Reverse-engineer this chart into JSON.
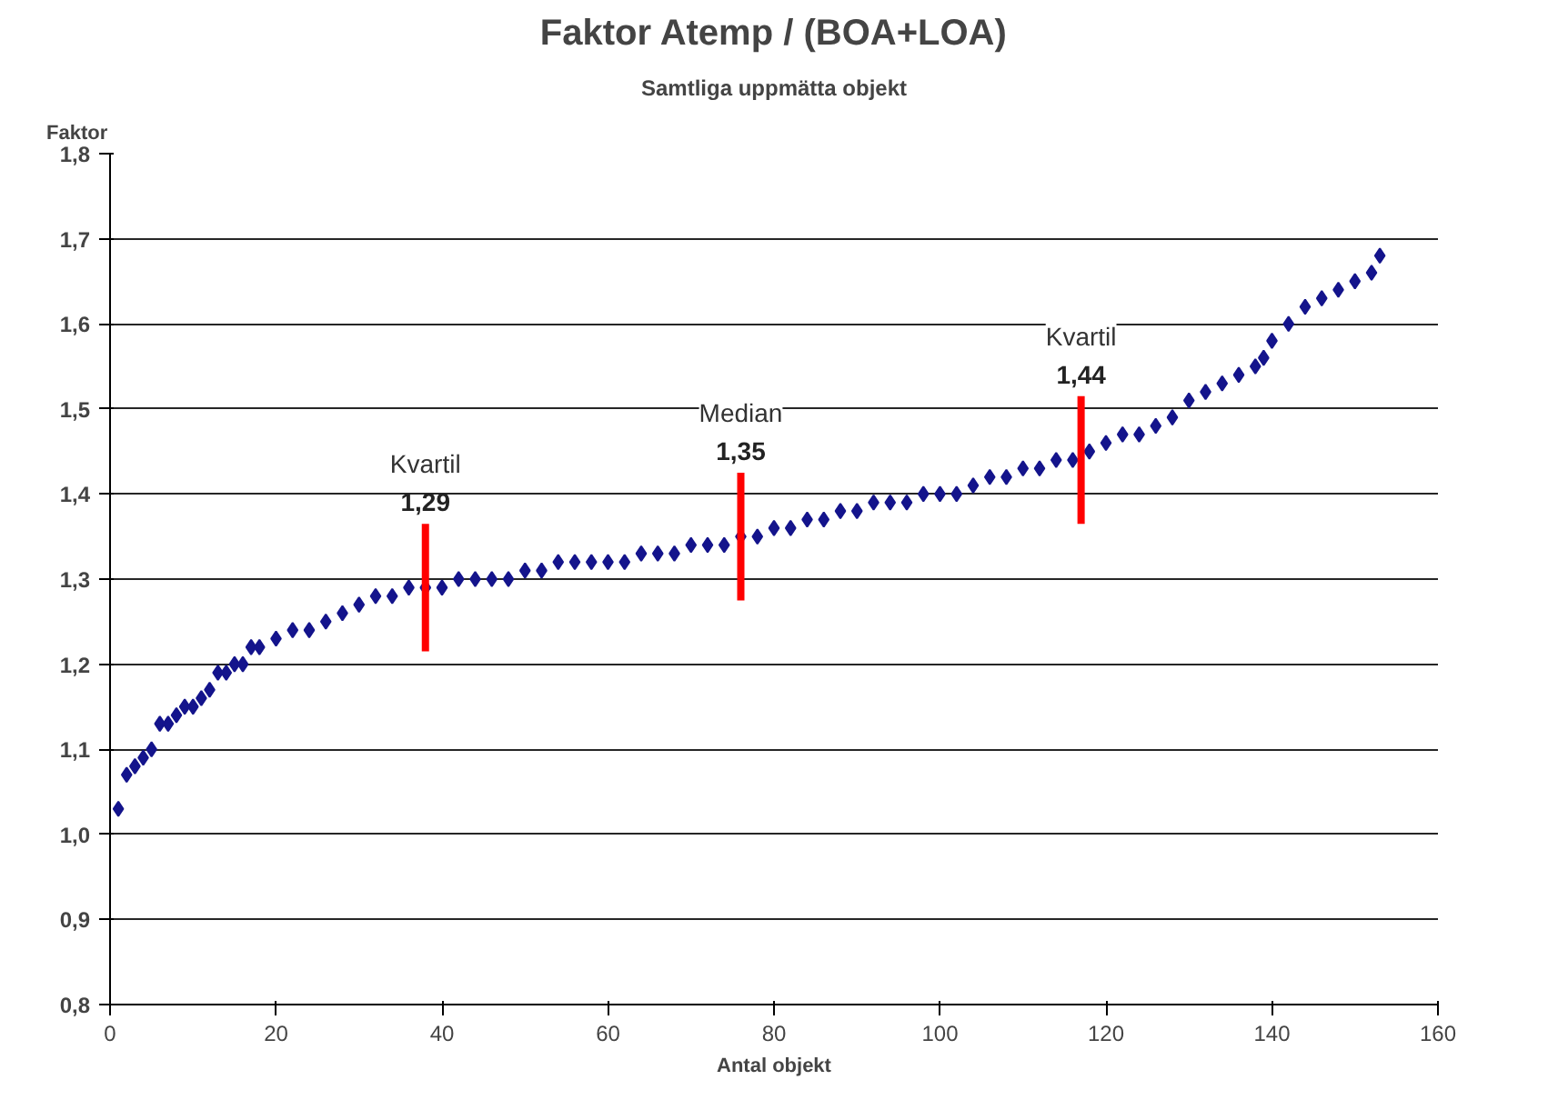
{
  "chart_data": {
    "type": "scatter",
    "title": "Faktor Atemp / (BOA+LOA)",
    "subtitle": "Samtliga uppmätta objekt",
    "xlabel": "Antal objekt",
    "ylabel": "Faktor",
    "marker": "diamond",
    "grid": "y",
    "xlim": [
      0,
      160
    ],
    "xticks": [
      0,
      20,
      40,
      60,
      80,
      100,
      120,
      140,
      160
    ],
    "ylim": [
      0.8,
      1.8
    ],
    "yticks": [
      {
        "value": 0.8,
        "label": "0,8"
      },
      {
        "value": 0.9,
        "label": "0,9"
      },
      {
        "value": 1.0,
        "label": "1,0"
      },
      {
        "value": 1.1,
        "label": "1,1"
      },
      {
        "value": 1.2,
        "label": "1,2"
      },
      {
        "value": 1.3,
        "label": "1,3"
      },
      {
        "value": 1.4,
        "label": "1,4"
      },
      {
        "value": 1.5,
        "label": "1,5"
      },
      {
        "value": 1.6,
        "label": "1,6"
      },
      {
        "value": 1.7,
        "label": "1,7"
      },
      {
        "value": 1.8,
        "label": "1,8"
      }
    ],
    "series": [
      {
        "color": "#14148c",
        "x": [
          1,
          2,
          3,
          4,
          5,
          6,
          7,
          8,
          9,
          10,
          11,
          12,
          13,
          14,
          15,
          16,
          17,
          18,
          20,
          22,
          24,
          26,
          28,
          30,
          32,
          34,
          36,
          38,
          40,
          42,
          44,
          46,
          48,
          50,
          52,
          54,
          56,
          58,
          60,
          62,
          64,
          66,
          68,
          70,
          72,
          74,
          76,
          78,
          80,
          82,
          84,
          86,
          88,
          90,
          92,
          94,
          96,
          98,
          100,
          102,
          104,
          106,
          108,
          110,
          112,
          114,
          116,
          118,
          120,
          122,
          124,
          126,
          128,
          130,
          132,
          134,
          136,
          138,
          139,
          140,
          142,
          144,
          146,
          148,
          150,
          152,
          153
        ],
        "values": [
          1.03,
          1.07,
          1.08,
          1.09,
          1.1,
          1.13,
          1.13,
          1.14,
          1.15,
          1.15,
          1.16,
          1.17,
          1.19,
          1.19,
          1.2,
          1.2,
          1.22,
          1.22,
          1.23,
          1.24,
          1.24,
          1.25,
          1.26,
          1.27,
          1.28,
          1.28,
          1.29,
          1.29,
          1.29,
          1.3,
          1.3,
          1.3,
          1.3,
          1.31,
          1.31,
          1.32,
          1.32,
          1.32,
          1.32,
          1.32,
          1.33,
          1.33,
          1.33,
          1.34,
          1.34,
          1.34,
          1.35,
          1.35,
          1.36,
          1.36,
          1.37,
          1.37,
          1.38,
          1.38,
          1.39,
          1.39,
          1.39,
          1.4,
          1.4,
          1.4,
          1.41,
          1.42,
          1.42,
          1.43,
          1.43,
          1.44,
          1.44,
          1.45,
          1.46,
          1.47,
          1.47,
          1.48,
          1.49,
          1.51,
          1.52,
          1.53,
          1.54,
          1.55,
          1.56,
          1.58,
          1.6,
          1.62,
          1.63,
          1.64,
          1.65,
          1.66,
          1.68
        ]
      }
    ],
    "annotations": [
      {
        "text": "Kvartil\n1,29",
        "x": 38,
        "y": 1.29
      },
      {
        "text": "Median\n1,35",
        "x": 76,
        "y": 1.35
      },
      {
        "text": "Kvartil\n1,44",
        "x": 117,
        "y": 1.44
      }
    ]
  }
}
